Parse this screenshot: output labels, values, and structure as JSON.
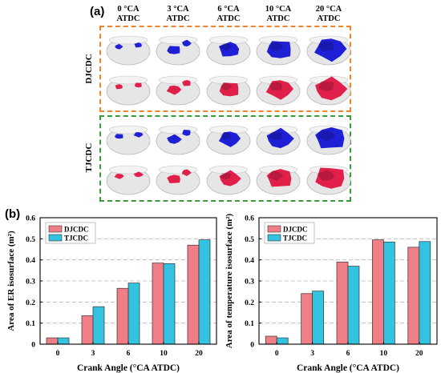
{
  "panel_a": {
    "label": "(a)",
    "columns": [
      {
        "line1": "0 °CA",
        "line2": "ATDC"
      },
      {
        "line1": "3 °CA",
        "line2": "ATDC"
      },
      {
        "line1": "6 °CA",
        "line2": "ATDC"
      },
      {
        "line1": "10 °CA",
        "line2": "ATDC"
      },
      {
        "line1": "20 °CA",
        "line2": "ATDC"
      }
    ],
    "groups": [
      {
        "label": "DJCDC",
        "border_color": "#f0822a"
      },
      {
        "label": "TJCDC",
        "border_color": "#3a9a3a"
      }
    ],
    "isosurface_colors": {
      "er": "#1f1fd6",
      "temperature": "#e0204a",
      "chamber": "#e6e6e6"
    }
  },
  "panel_b": {
    "label": "(b)"
  },
  "chart_data": [
    {
      "type": "bar",
      "categories": [
        "0",
        "3",
        "6",
        "10",
        "20"
      ],
      "series": [
        {
          "name": "DJCDC",
          "values": [
            0.03,
            0.135,
            0.265,
            0.385,
            0.47
          ],
          "color": "#f07e86"
        },
        {
          "name": "TJCDC",
          "values": [
            0.03,
            0.178,
            0.29,
            0.382,
            0.495
          ],
          "color": "#33c2e0"
        }
      ],
      "xlabel": "Crank Angle (°CA ATDC)",
      "ylabel": "Area of ER isosurface (m²)",
      "ylim": [
        0,
        0.6
      ],
      "yticks": [
        "0",
        "0.1",
        "0.2",
        "0.3",
        "0.4",
        "0.5",
        "0.6"
      ],
      "grid": "horizontal dashed",
      "legend_position": "top-left"
    },
    {
      "type": "bar",
      "categories": [
        "0",
        "3",
        "6",
        "10",
        "20"
      ],
      "series": [
        {
          "name": "DJCDC",
          "values": [
            0.038,
            0.24,
            0.39,
            0.495,
            0.46
          ],
          "color": "#f07e86"
        },
        {
          "name": "TJCDC",
          "values": [
            0.03,
            0.252,
            0.37,
            0.485,
            0.487
          ],
          "color": "#33c2e0"
        }
      ],
      "xlabel": "Crank Angle (°CA ATDC)",
      "ylabel": "Area of temperature isosurface (m²)",
      "ylim": [
        0,
        0.6
      ],
      "yticks": [
        "0",
        "0.1",
        "0.2",
        "0.3",
        "0.4",
        "0.5",
        "0.6"
      ],
      "grid": "horizontal dashed",
      "legend_position": "top-left"
    }
  ]
}
